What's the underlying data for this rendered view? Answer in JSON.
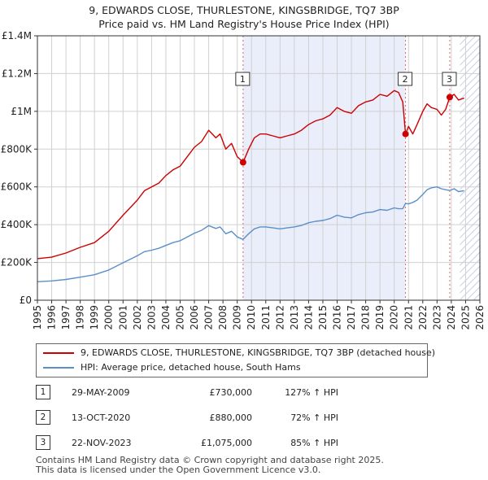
{
  "chart_data": {
    "type": "line",
    "title": "9, EDWARDS CLOSE, THURLESTONE, KINGSBRIDGE, TQ7 3BP",
    "subtitle": "Price paid vs. HM Land Registry's House Price Index (HPI)",
    "xlabel": "",
    "ylabel": "",
    "xlim": [
      1995,
      2026
    ],
    "ylim": [
      0,
      1400000
    ],
    "x_ticks": [
      1995,
      1996,
      1997,
      1998,
      1999,
      2000,
      2001,
      2002,
      2003,
      2004,
      2005,
      2006,
      2007,
      2008,
      2009,
      2010,
      2011,
      2012,
      2013,
      2014,
      2015,
      2016,
      2017,
      2018,
      2019,
      2020,
      2021,
      2022,
      2023,
      2024,
      2025,
      2026
    ],
    "y_ticks": [
      {
        "value": 0,
        "label": "£0"
      },
      {
        "value": 200000,
        "label": "£200K"
      },
      {
        "value": 400000,
        "label": "£400K"
      },
      {
        "value": 600000,
        "label": "£600K"
      },
      {
        "value": 800000,
        "label": "£800K"
      },
      {
        "value": 1000000,
        "label": "£1M"
      },
      {
        "value": 1200000,
        "label": "£1.2M"
      },
      {
        "value": 1400000,
        "label": "£1.4M"
      }
    ],
    "grid": true,
    "shaded_period": [
      2009.41,
      2020.79
    ],
    "future_hatch_from": 2024.6,
    "series": [
      {
        "name": "9, EDWARDS CLOSE, THURLESTONE, KINGSBRIDGE, TQ7 3BP (detached house)",
        "color": "#cc0000",
        "x": [
          1995.0,
          1996.0,
          1997.0,
          1998.0,
          1999.0,
          2000.0,
          2001.0,
          2002.0,
          2002.5,
          2003.0,
          2003.5,
          2004.0,
          2004.5,
          2005.0,
          2005.5,
          2006.0,
          2006.5,
          2007.0,
          2007.5,
          2007.8,
          2008.2,
          2008.6,
          2009.0,
          2009.41,
          2009.8,
          2010.2,
          2010.6,
          2011.0,
          2011.5,
          2012.0,
          2012.5,
          2013.0,
          2013.5,
          2014.0,
          2014.5,
          2015.0,
          2015.5,
          2016.0,
          2016.5,
          2017.0,
          2017.5,
          2018.0,
          2018.5,
          2019.0,
          2019.5,
          2020.0,
          2020.3,
          2020.6,
          2020.79,
          2021.0,
          2021.3,
          2021.6,
          2022.0,
          2022.3,
          2022.6,
          2023.0,
          2023.3,
          2023.6,
          2023.89,
          2024.2,
          2024.5,
          2024.9
        ],
        "y": [
          220000,
          228000,
          250000,
          280000,
          305000,
          365000,
          450000,
          530000,
          580000,
          600000,
          620000,
          660000,
          690000,
          710000,
          760000,
          810000,
          840000,
          900000,
          860000,
          880000,
          800000,
          830000,
          760000,
          730000,
          800000,
          860000,
          880000,
          880000,
          870000,
          860000,
          870000,
          880000,
          900000,
          930000,
          950000,
          960000,
          980000,
          1020000,
          1000000,
          990000,
          1030000,
          1050000,
          1060000,
          1090000,
          1080000,
          1110000,
          1100000,
          1050000,
          880000,
          920000,
          880000,
          930000,
          1000000,
          1040000,
          1020000,
          1010000,
          980000,
          1010000,
          1075000,
          1090000,
          1060000,
          1070000
        ]
      },
      {
        "name": "HPI: Average price, detached house, South Hams",
        "color": "#5b8fc9",
        "x": [
          1995.0,
          1996.0,
          1997.0,
          1998.0,
          1999.0,
          2000.0,
          2001.0,
          2002.0,
          2002.5,
          2003.0,
          2003.5,
          2004.0,
          2004.5,
          2005.0,
          2005.5,
          2006.0,
          2006.5,
          2007.0,
          2007.5,
          2007.8,
          2008.2,
          2008.6,
          2009.0,
          2009.41,
          2009.8,
          2010.2,
          2010.6,
          2011.0,
          2011.5,
          2012.0,
          2012.5,
          2013.0,
          2013.5,
          2014.0,
          2014.5,
          2015.0,
          2015.5,
          2016.0,
          2016.5,
          2017.0,
          2017.5,
          2018.0,
          2018.5,
          2019.0,
          2019.5,
          2020.0,
          2020.3,
          2020.6,
          2020.79,
          2021.0,
          2021.3,
          2021.6,
          2022.0,
          2022.3,
          2022.6,
          2023.0,
          2023.3,
          2023.6,
          2023.89,
          2024.2,
          2024.5,
          2024.9
        ],
        "y": [
          98000,
          102000,
          110000,
          122000,
          135000,
          160000,
          198000,
          235000,
          257000,
          265000,
          275000,
          290000,
          305000,
          315000,
          335000,
          355000,
          370000,
          395000,
          380000,
          388000,
          352000,
          365000,
          335000,
          322000,
          352000,
          378000,
          388000,
          388000,
          383000,
          378000,
          383000,
          388000,
          396000,
          410000,
          418000,
          422000,
          432000,
          450000,
          440000,
          436000,
          453000,
          463000,
          467000,
          480000,
          476000,
          489000,
          484000,
          485000,
          512000,
          510000,
          518000,
          530000,
          560000,
          585000,
          595000,
          600000,
          590000,
          585000,
          581000,
          590000,
          575000,
          580000
        ]
      }
    ],
    "annotations": [
      {
        "label": "1",
        "x": 2009.41,
        "y": 730000
      },
      {
        "label": "2",
        "x": 2020.79,
        "y": 880000
      },
      {
        "label": "3",
        "x": 2023.89,
        "y": 1075000
      }
    ]
  },
  "legend": {
    "items": [
      {
        "label": "9, EDWARDS CLOSE, THURLESTONE, KINGSBRIDGE, TQ7 3BP (detached house)",
        "color": "#cc0000"
      },
      {
        "label": "HPI: Average price, detached house, South Hams",
        "color": "#5b8fc9"
      }
    ]
  },
  "transactions": [
    {
      "num": "1",
      "date": "29-MAY-2009",
      "price": "£730,000",
      "hpi": "127% ↑ HPI"
    },
    {
      "num": "2",
      "date": "13-OCT-2020",
      "price": "£880,000",
      "hpi": "72% ↑ HPI"
    },
    {
      "num": "3",
      "date": "22-NOV-2023",
      "price": "£1,075,000",
      "hpi": "85% ↑ HPI"
    }
  ],
  "footer": {
    "line1": "Contains HM Land Registry data © Crown copyright and database right 2025.",
    "line2": "This data is licensed under the Open Government Licence v3.0."
  }
}
